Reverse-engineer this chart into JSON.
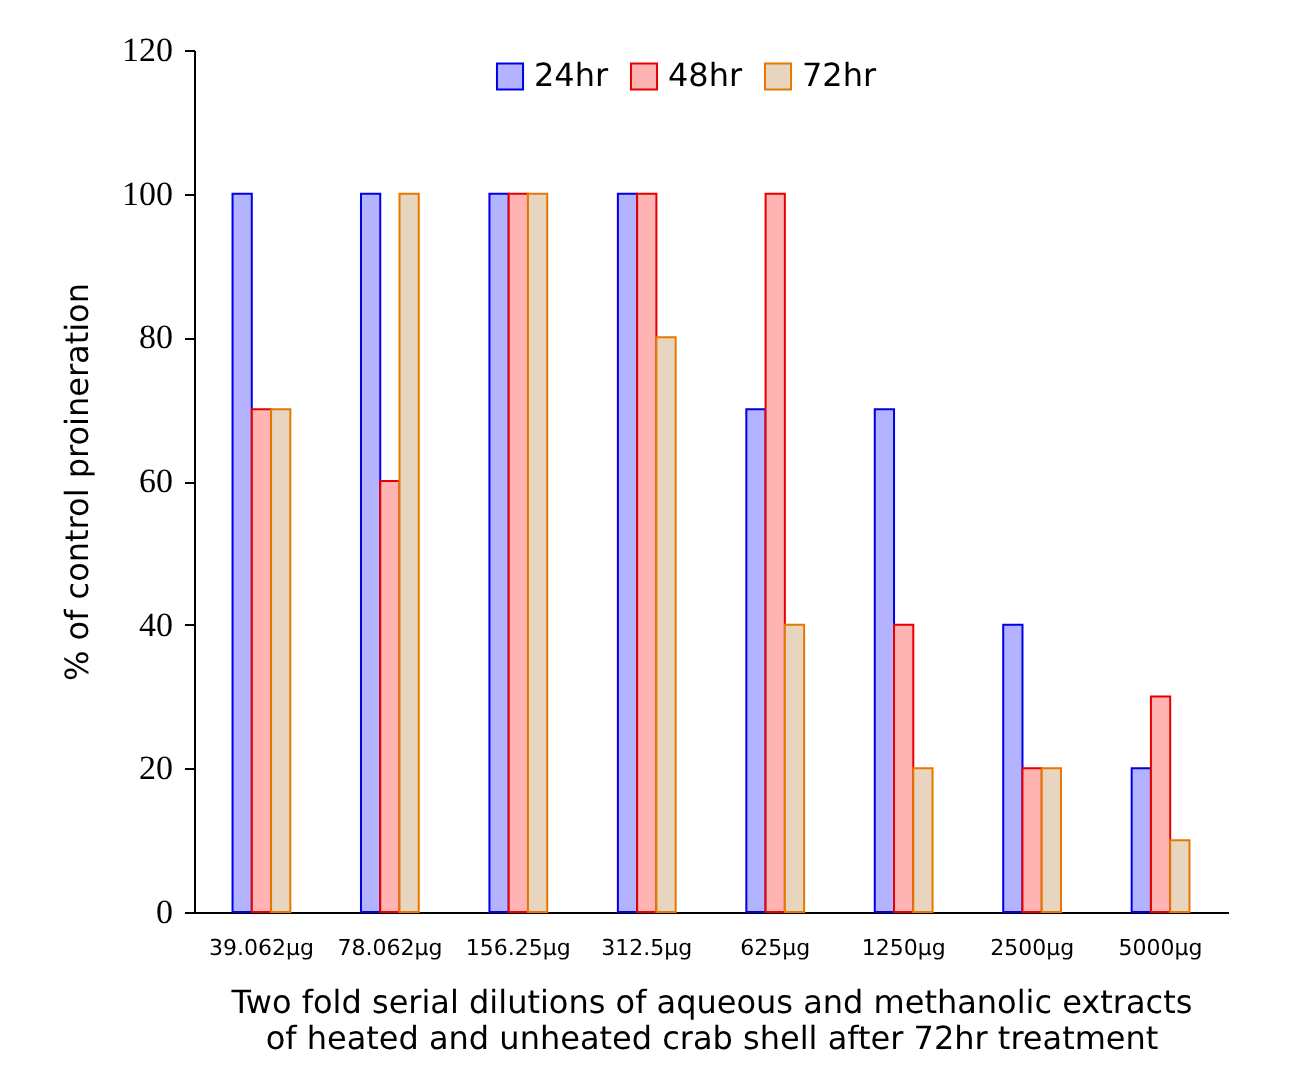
{
  "chart_data": {
    "type": "bar",
    "xlabel": "Two fold serial dilutions of aqueous and methanolic extracts of heated and unheated crab shell after 72hr treatment",
    "ylabel": "% of control proineration",
    "categories": [
      "39.062µg",
      "78.062µg",
      "156.25µg",
      "312.5µg",
      "625µg",
      "1250µg",
      "2500µg",
      "5000µg"
    ],
    "series": [
      {
        "name": "24hr",
        "color": "#b3b3ff",
        "values": [
          100,
          100,
          100,
          100,
          70,
          70,
          40,
          20
        ]
      },
      {
        "name": "48hr",
        "color": "#ffb3b3",
        "values": [
          70,
          60,
          100,
          100,
          100,
          40,
          20,
          30
        ]
      },
      {
        "name": "72hr",
        "color": "#e8d5c0",
        "values": [
          70,
          100,
          100,
          80,
          40,
          20,
          20,
          10
        ]
      }
    ],
    "ylim": [
      0,
      120
    ],
    "yticks": [
      0,
      20,
      40,
      60,
      80,
      100,
      120
    ],
    "legend": "top",
    "grid": false
  }
}
